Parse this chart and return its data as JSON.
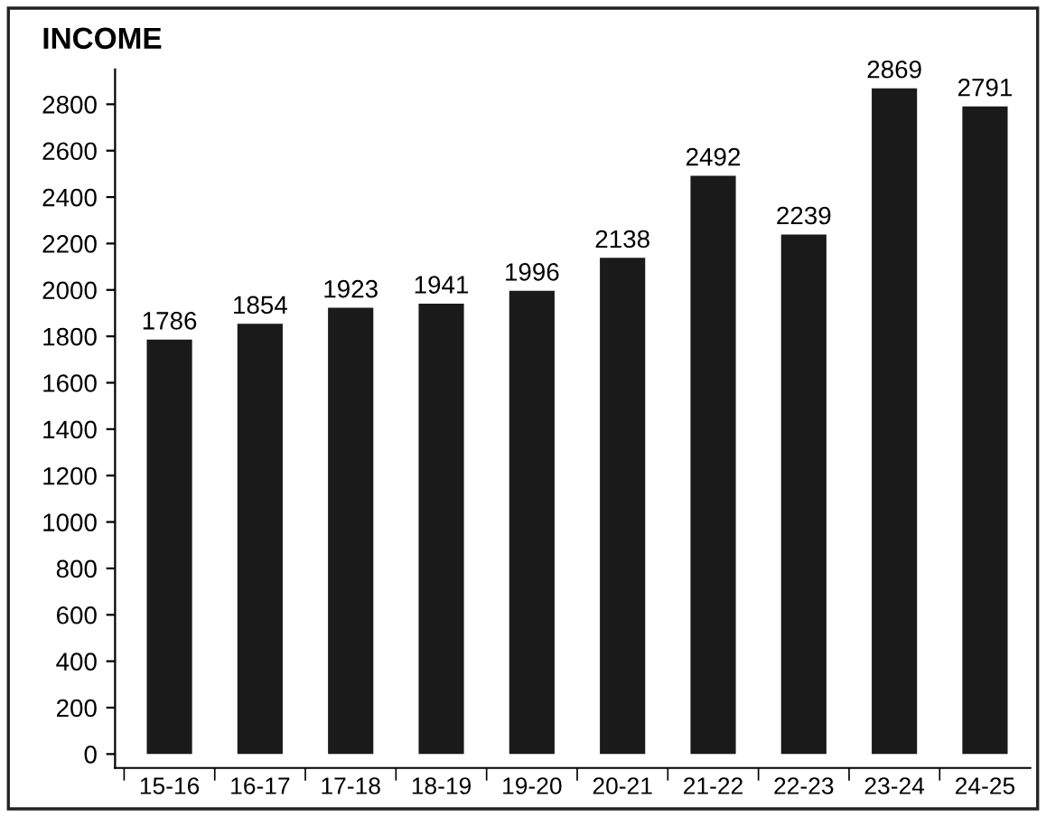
{
  "chart_data": {
    "type": "bar",
    "title": "INCOME",
    "categories": [
      "15-16",
      "16-17",
      "17-18",
      "18-19",
      "19-20",
      "20-21",
      "21-22",
      "22-23",
      "23-24",
      "24-25"
    ],
    "values": [
      1786,
      1854,
      1923,
      1941,
      1996,
      2138,
      2492,
      2239,
      2869,
      2791
    ],
    "color": "#1a1a1a",
    "ylim": [
      -60,
      2950
    ],
    "yticks": [
      0,
      200,
      400,
      600,
      800,
      1000,
      1200,
      1400,
      1600,
      1800,
      2000,
      2200,
      2400,
      2600,
      2800
    ],
    "data_labels": true,
    "grid": false,
    "legend": false
  }
}
